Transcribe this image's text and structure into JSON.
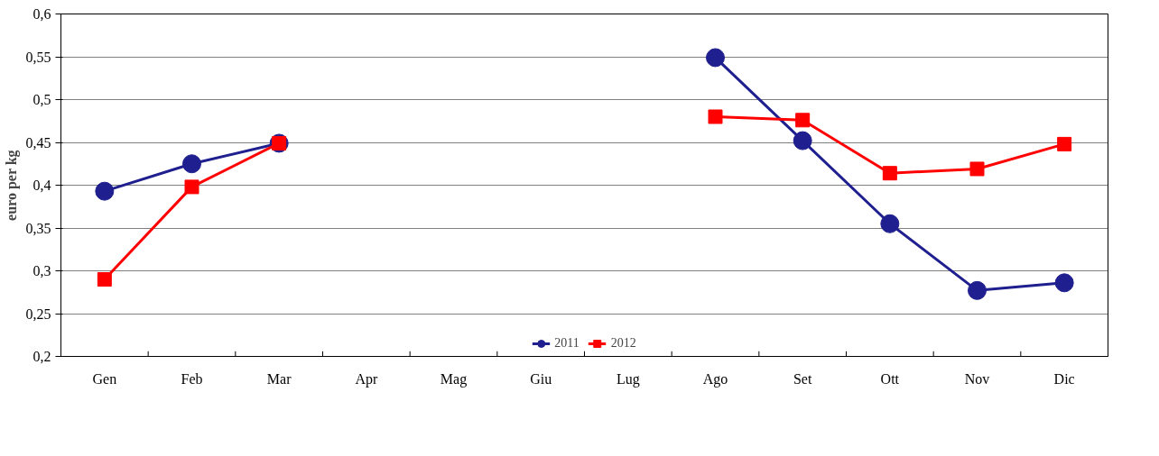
{
  "chart_data": {
    "type": "line",
    "ylabel": "euro per kg",
    "categories": [
      "Gen",
      "Feb",
      "Mar",
      "Apr",
      "Mag",
      "Giu",
      "Lug",
      "Ago",
      "Set",
      "Ott",
      "Nov",
      "Dic"
    ],
    "series": [
      {
        "name": "2011",
        "color": "#1f1f8f",
        "marker": "circle",
        "values": [
          0.393,
          0.425,
          0.449,
          null,
          null,
          null,
          null,
          0.549,
          0.452,
          0.355,
          0.277,
          0.286
        ]
      },
      {
        "name": "2012",
        "color": "#ff0000",
        "marker": "square",
        "values": [
          0.29,
          0.398,
          0.449,
          null,
          null,
          null,
          null,
          0.48,
          0.476,
          0.414,
          0.419,
          0.448
        ]
      }
    ],
    "ylim": [
      0.2,
      0.6
    ],
    "yticks": [
      {
        "value": 0.2,
        "label": "0,2"
      },
      {
        "value": 0.25,
        "label": "0,25"
      },
      {
        "value": 0.3,
        "label": "0,3"
      },
      {
        "value": 0.35,
        "label": "0,35"
      },
      {
        "value": 0.4,
        "label": "0,4"
      },
      {
        "value": 0.45,
        "label": "0,45"
      },
      {
        "value": 0.5,
        "label": "0,5"
      },
      {
        "value": 0.55,
        "label": "0,55"
      },
      {
        "value": 0.6,
        "label": "0,6"
      }
    ],
    "grid": "y",
    "legend": "bottom",
    "line_style": "solid"
  }
}
